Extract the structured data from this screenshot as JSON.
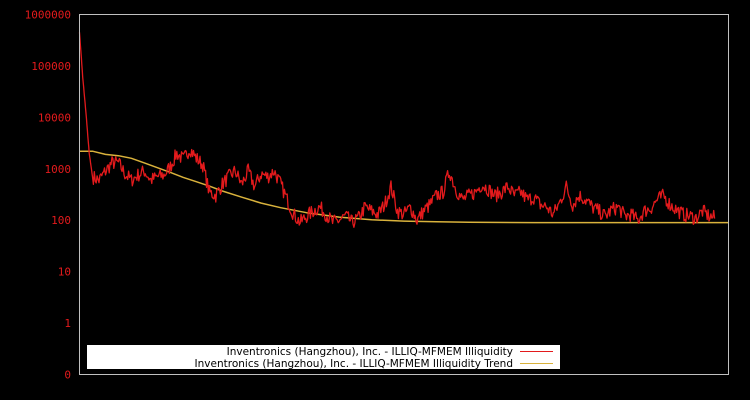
{
  "chart_data": {
    "type": "line",
    "title": "",
    "xlabel": "",
    "ylabel": "",
    "y_scale": "log",
    "ylim": [
      0,
      1000000
    ],
    "grid": false,
    "legend_position": "bottom-left inside plot",
    "y_tick_labels": [
      "1000000",
      "100000",
      "10000",
      "1000",
      "100",
      "10",
      "1",
      "0"
    ],
    "background": "#000000",
    "axis_color": "#c0c0c0",
    "tick_label_color": "#e31a1c",
    "series": [
      {
        "name": "Inventronics (Hangzhou), Inc. - ILLIQ-MFMEM Illiquidity",
        "color": "#e31a1c",
        "x_frac": [
          0.0,
          0.005,
          0.01,
          0.015,
          0.02,
          0.03,
          0.04,
          0.05,
          0.06,
          0.07,
          0.08,
          0.09,
          0.1,
          0.11,
          0.12,
          0.13,
          0.14,
          0.15,
          0.16,
          0.17,
          0.18,
          0.19,
          0.2,
          0.21,
          0.22,
          0.23,
          0.24,
          0.25,
          0.26,
          0.27,
          0.28,
          0.29,
          0.3,
          0.31,
          0.32,
          0.33,
          0.34,
          0.35,
          0.36,
          0.37,
          0.38,
          0.39,
          0.4,
          0.41,
          0.42,
          0.43,
          0.44,
          0.45,
          0.46,
          0.47,
          0.48,
          0.49,
          0.5,
          0.51,
          0.52,
          0.53,
          0.54,
          0.55,
          0.56,
          0.57,
          0.58,
          0.59,
          0.6,
          0.61,
          0.62,
          0.63,
          0.64,
          0.65,
          0.66,
          0.67,
          0.68,
          0.69,
          0.7,
          0.71,
          0.72,
          0.73,
          0.74,
          0.75,
          0.76,
          0.77,
          0.78,
          0.79,
          0.8,
          0.81,
          0.82,
          0.83,
          0.84,
          0.85,
          0.86,
          0.87,
          0.88,
          0.89,
          0.9,
          0.91,
          0.92,
          0.93,
          0.94,
          0.95,
          0.96,
          0.97,
          0.98,
          0.99,
          1.0
        ],
        "values": [
          450000,
          60000,
          12000,
          2000,
          700,
          600,
          900,
          1300,
          1300,
          800,
          600,
          750,
          900,
          600,
          700,
          750,
          1100,
          2000,
          1500,
          2500,
          1600,
          1200,
          350,
          300,
          500,
          700,
          900,
          500,
          900,
          450,
          800,
          700,
          900,
          500,
          250,
          130,
          90,
          120,
          150,
          180,
          130,
          90,
          100,
          120,
          90,
          110,
          180,
          150,
          130,
          200,
          450,
          150,
          130,
          180,
          100,
          150,
          200,
          300,
          350,
          900,
          400,
          250,
          300,
          350,
          500,
          400,
          300,
          350,
          450,
          300,
          350,
          250,
          280,
          200,
          180,
          130,
          220,
          450,
          200,
          300,
          250,
          180,
          150,
          120,
          160,
          180,
          120,
          130,
          100,
          150,
          170,
          250,
          300,
          200,
          160,
          130,
          120,
          110,
          150,
          120,
          110
        ]
      },
      {
        "name": "Inventronics (Hangzhou), Inc. - ILLIQ-MFMEM Illiquidity Trend",
        "color": "#d9b23c",
        "x_frac": [
          0.0,
          0.02,
          0.04,
          0.06,
          0.08,
          0.1,
          0.12,
          0.14,
          0.16,
          0.18,
          0.2,
          0.22,
          0.25,
          0.28,
          0.31,
          0.35,
          0.4,
          0.45,
          0.5,
          0.55,
          0.6,
          0.7,
          0.8,
          0.9,
          1.0
        ],
        "values": [
          2200,
          2200,
          1900,
          1800,
          1600,
          1300,
          1050,
          850,
          680,
          560,
          460,
          370,
          280,
          215,
          175,
          140,
          115,
          102,
          96,
          93,
          91,
          90,
          90,
          90,
          90
        ]
      }
    ]
  },
  "legend": {
    "items": [
      {
        "label": "Inventronics (Hangzhou), Inc. - ILLIQ-MFMEM Illiquidity",
        "color": "#e31a1c"
      },
      {
        "label": "Inventronics (Hangzhou), Inc. - ILLIQ-MFMEM Illiquidity Trend",
        "color": "#d9b23c"
      }
    ]
  }
}
